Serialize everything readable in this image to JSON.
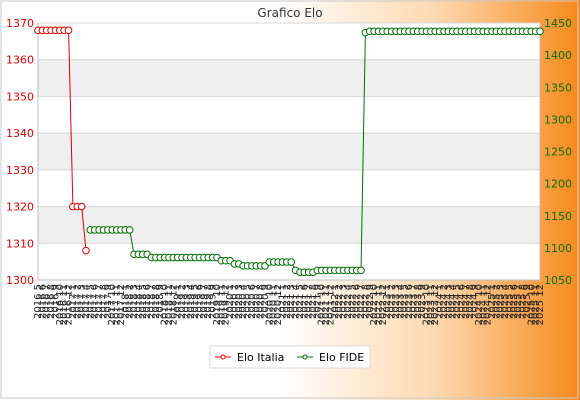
{
  "chart_data": {
    "type": "line",
    "title": "Grafico Elo",
    "xlabel": "",
    "ylabel_left": "",
    "ylabel_right": "",
    "grid": true,
    "legend_position": "bottom-center",
    "x": [
      "2016 5",
      "2016 6",
      "2016 7",
      "2016 8",
      "2016 9",
      "2016 10",
      "2016 11",
      "2016 12",
      "2017 1",
      "2017 2",
      "2017 3",
      "2017 4",
      "2017 5",
      "2017 6",
      "2017 7",
      "2017 8",
      "2017 9",
      "2017 10",
      "2017 11",
      "2017 12",
      "2018 1",
      "2018 2",
      "2018 3",
      "2018 4",
      "2018 5",
      "2018 6",
      "2018 7",
      "2018 8",
      "2018 9",
      "2018 10",
      "2018 11",
      "2018 12",
      "2019 1",
      "2019 2",
      "2019 3",
      "2019 4",
      "2019 5",
      "2019 6",
      "2019 7",
      "2019 8",
      "2019 9",
      "2019 10",
      "2019 11",
      "2019 12",
      "2020 1",
      "2020 2",
      "2020 3",
      "2020 4",
      "2020 5",
      "2020 6",
      "2020 7",
      "2020 8",
      "2020 9",
      "2020 10",
      "2020 11",
      "2020 12",
      "2021 1",
      "2021 2",
      "2021 3",
      "2021 4",
      "2021 5",
      "2021 6",
      "2021 7",
      "2021 8",
      "2021 9",
      "2021 10",
      "2021 11",
      "2021 12",
      "2022 1",
      "2022 2",
      "2022 3",
      "2022 4",
      "2022 5",
      "2022 6",
      "2022 7",
      "2022 8",
      "2022 9",
      "2022 10",
      "2022 11",
      "2022 12",
      "2023 1",
      "2023 2",
      "2023 3",
      "2023 4",
      "2023 5",
      "2023 6",
      "2023 7",
      "2023 8",
      "2023 9",
      "2023 10",
      "2023 11",
      "2023 12",
      "2024 1",
      "2024 2",
      "2024 3",
      "2024 4",
      "2024 5",
      "2024 6",
      "2024 7",
      "2024 8",
      "2024 9",
      "2024 10",
      "2024 11",
      "2024 12",
      "2025 1",
      "2025 2",
      "2025 3",
      "2025 4",
      "2025 5",
      "2025 6",
      "2025 7",
      "2025 8",
      "2025 9",
      "2025 10",
      "2025 11",
      "2025 12"
    ],
    "y_left": {
      "range": [
        1300,
        1370
      ],
      "ticks": [
        1300,
        1310,
        1320,
        1330,
        1340,
        1350,
        1360,
        1370
      ]
    },
    "y_right": {
      "range": [
        1050,
        1450
      ],
      "ticks": [
        1050,
        1100,
        1150,
        1200,
        1250,
        1300,
        1350,
        1400,
        1450
      ]
    },
    "series": [
      {
        "name": "Elo Italia",
        "axis": "left",
        "color": "#e00000",
        "points": [
          [
            0,
            1368
          ],
          [
            1,
            1368
          ],
          [
            2,
            1368
          ],
          [
            3,
            1368
          ],
          [
            4,
            1368
          ],
          [
            5,
            1368
          ],
          [
            6,
            1368
          ],
          [
            7,
            1368
          ],
          [
            8,
            1320
          ],
          [
            9,
            1320
          ],
          [
            10,
            1320
          ],
          [
            11,
            1308
          ]
        ]
      },
      {
        "name": "Elo FIDE",
        "axis": "right",
        "color": "#007000",
        "points": [
          [
            12,
            1128
          ],
          [
            13,
            1128
          ],
          [
            14,
            1128
          ],
          [
            15,
            1128
          ],
          [
            16,
            1128
          ],
          [
            17,
            1128
          ],
          [
            18,
            1128
          ],
          [
            19,
            1128
          ],
          [
            20,
            1128
          ],
          [
            21,
            1128
          ],
          [
            22,
            1090
          ],
          [
            23,
            1090
          ],
          [
            24,
            1090
          ],
          [
            25,
            1090
          ],
          [
            26,
            1085
          ],
          [
            27,
            1085
          ],
          [
            28,
            1085
          ],
          [
            29,
            1085
          ],
          [
            30,
            1085
          ],
          [
            31,
            1085
          ],
          [
            32,
            1085
          ],
          [
            33,
            1085
          ],
          [
            34,
            1085
          ],
          [
            35,
            1085
          ],
          [
            36,
            1085
          ],
          [
            37,
            1085
          ],
          [
            38,
            1085
          ],
          [
            39,
            1085
          ],
          [
            40,
            1085
          ],
          [
            41,
            1085
          ],
          [
            42,
            1080
          ],
          [
            43,
            1080
          ],
          [
            44,
            1080
          ],
          [
            45,
            1075
          ],
          [
            46,
            1075
          ],
          [
            47,
            1072
          ],
          [
            48,
            1072
          ],
          [
            49,
            1072
          ],
          [
            50,
            1072
          ],
          [
            51,
            1072
          ],
          [
            52,
            1072
          ],
          [
            53,
            1078
          ],
          [
            54,
            1078
          ],
          [
            55,
            1078
          ],
          [
            56,
            1078
          ],
          [
            57,
            1078
          ],
          [
            58,
            1078
          ],
          [
            59,
            1065
          ],
          [
            60,
            1062
          ],
          [
            61,
            1062
          ],
          [
            62,
            1062
          ],
          [
            63,
            1062
          ],
          [
            64,
            1065
          ],
          [
            65,
            1065
          ],
          [
            66,
            1065
          ],
          [
            67,
            1065
          ],
          [
            68,
            1065
          ],
          [
            69,
            1065
          ],
          [
            70,
            1065
          ],
          [
            71,
            1065
          ],
          [
            72,
            1065
          ],
          [
            73,
            1065
          ],
          [
            74,
            1065
          ],
          [
            75,
            1435
          ],
          [
            76,
            1437
          ],
          [
            77,
            1437
          ],
          [
            78,
            1437
          ],
          [
            79,
            1437
          ],
          [
            80,
            1437
          ],
          [
            81,
            1437
          ],
          [
            82,
            1437
          ],
          [
            83,
            1437
          ],
          [
            84,
            1437
          ],
          [
            85,
            1437
          ],
          [
            86,
            1437
          ],
          [
            87,
            1437
          ],
          [
            88,
            1437
          ],
          [
            89,
            1437
          ],
          [
            90,
            1437
          ],
          [
            91,
            1437
          ],
          [
            92,
            1437
          ],
          [
            93,
            1437
          ],
          [
            94,
            1437
          ],
          [
            95,
            1437
          ],
          [
            96,
            1437
          ],
          [
            97,
            1437
          ],
          [
            98,
            1437
          ],
          [
            99,
            1437
          ],
          [
            100,
            1437
          ],
          [
            101,
            1437
          ],
          [
            102,
            1437
          ],
          [
            103,
            1437
          ],
          [
            104,
            1437
          ],
          [
            105,
            1437
          ],
          [
            106,
            1437
          ],
          [
            107,
            1437
          ],
          [
            108,
            1437
          ],
          [
            109,
            1437
          ],
          [
            110,
            1437
          ],
          [
            111,
            1437
          ],
          [
            112,
            1437
          ],
          [
            113,
            1437
          ],
          [
            114,
            1437
          ],
          [
            115,
            1437
          ]
        ]
      }
    ]
  }
}
